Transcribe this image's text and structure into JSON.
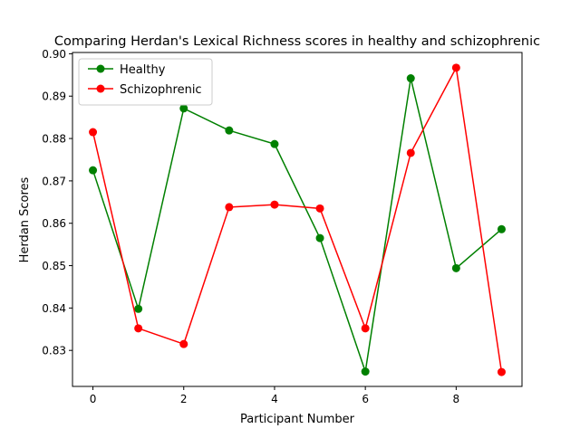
{
  "chart_data": {
    "type": "line",
    "title": "Comparing Herdan's Lexical Richness scores in healthy and schizophrenic",
    "xlabel": "Participant Number",
    "ylabel": "Herdan Scores",
    "x": [
      0,
      1,
      2,
      3,
      4,
      5,
      6,
      7,
      8,
      9
    ],
    "xlim": [
      -0.45,
      9.45
    ],
    "ylim": [
      0.8215,
      0.9003
    ],
    "xticks": [
      0,
      2,
      4,
      6,
      8
    ],
    "yticks": [
      0.83,
      0.84,
      0.85,
      0.86,
      0.87,
      0.88,
      0.89,
      0.9
    ],
    "ytick_labels": [
      "0.83",
      "0.84",
      "0.85",
      "0.86",
      "0.87",
      "0.88",
      "0.89",
      "0.90"
    ],
    "grid": false,
    "legend_position": "top-left",
    "series": [
      {
        "name": "Healthy",
        "color": "#008000",
        "marker": "circle",
        "values": [
          0.8725,
          0.8398,
          0.8871,
          0.8819,
          0.8787,
          0.8565,
          0.825,
          0.8942,
          0.8494,
          0.8586
        ]
      },
      {
        "name": "Schizophrenic",
        "color": "#ff0000",
        "marker": "circle",
        "values": [
          0.8815,
          0.8352,
          0.8315,
          0.8638,
          0.8644,
          0.8635,
          0.8352,
          0.8766,
          0.8967,
          0.8249
        ]
      }
    ]
  }
}
